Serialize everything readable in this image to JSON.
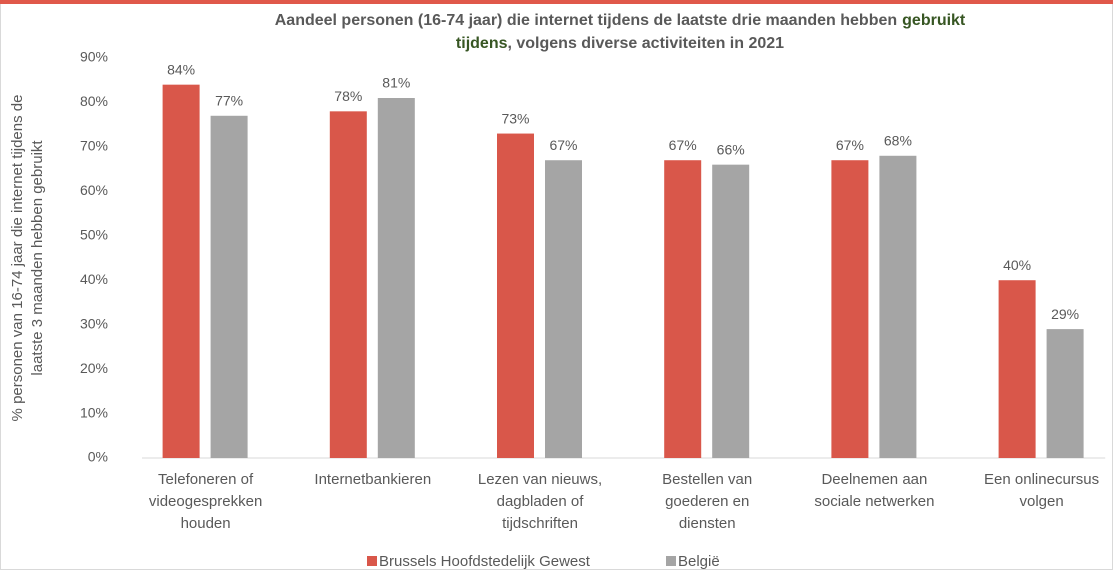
{
  "chart_data": {
    "type": "bar",
    "title": [
      "Aandeel personen (16-74 jaar) die internet tijdens de laatste drie maanden hebben",
      "gebruikt",
      "tijdens",
      ", volgens diverse activiteiten in 2021"
    ],
    "title_highlight_color": "#375623",
    "y_label": [
      "% personen van 16-74 jaar die internet tijdens de",
      "laatste 3 maanden hebben gebruikt"
    ],
    "categories": [
      [
        "Telefoneren of",
        "videogesprekken",
        "houden"
      ],
      [
        "Internetbankieren"
      ],
      [
        "Lezen van nieuws,",
        "dagbladen of",
        "tijdschriften"
      ],
      [
        "Bestellen van",
        "goederen en",
        "diensten"
      ],
      [
        "Deelnemen aan",
        "sociale netwerken"
      ],
      [
        "Een onlinecursus",
        "volgen"
      ]
    ],
    "series": [
      {
        "name": "Brussels Hoofdstedelijk Gewest",
        "color": "#d9574a",
        "values": [
          84,
          78,
          73,
          67,
          67,
          40
        ],
        "value_labels": [
          "84%",
          "78%",
          "73%",
          "67%",
          "67%",
          "40%"
        ]
      },
      {
        "name": "België",
        "color": "#a5a5a5",
        "values": [
          77,
          81,
          67,
          66,
          68,
          29
        ],
        "value_labels": [
          "77%",
          "81%",
          "67%",
          "66%",
          "68%",
          "29%"
        ]
      }
    ],
    "ylim": [
      0,
      90
    ],
    "yticks": [
      {
        "value": 0,
        "label": "0%"
      },
      {
        "value": 10,
        "label": "10%"
      },
      {
        "value": 20,
        "label": "20%"
      },
      {
        "value": 30,
        "label": "30%"
      },
      {
        "value": 40,
        "label": "40%"
      },
      {
        "value": 50,
        "label": "50%"
      },
      {
        "value": 60,
        "label": "60%"
      },
      {
        "value": 70,
        "label": "70%"
      },
      {
        "value": 80,
        "label": "80%"
      },
      {
        "value": 90,
        "label": "90%"
      }
    ],
    "legend": "bottom"
  }
}
